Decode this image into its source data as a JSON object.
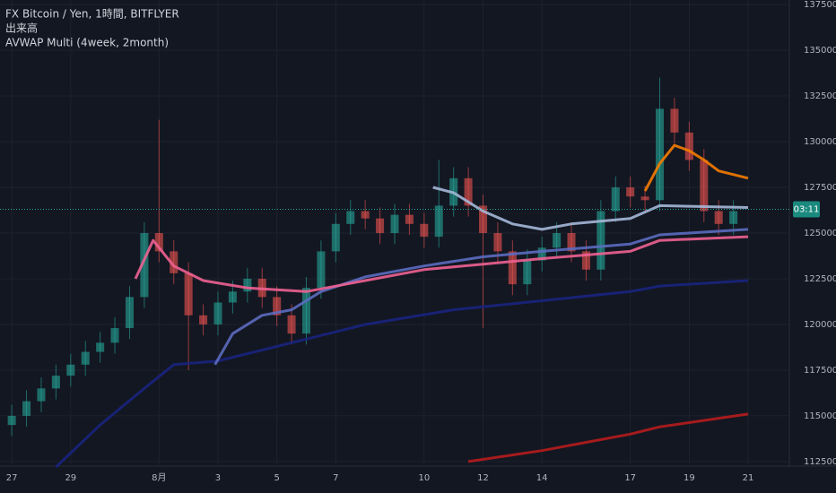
{
  "chart_data": {
    "type": "candlestick",
    "legend_lines": [
      "FX Bitcoin / Yen, 1時間, BITFLYER",
      "出来高",
      "AVWAP Multi (4week, 2month)"
    ],
    "xlim": [
      -0.4,
      26.4
    ],
    "xticks": [
      {
        "value": 0,
        "label": "27"
      },
      {
        "value": 2,
        "label": "29"
      },
      {
        "value": 5,
        "label": "8月"
      },
      {
        "value": 7,
        "label": "3"
      },
      {
        "value": 9,
        "label": "5"
      },
      {
        "value": 11,
        "label": "7"
      },
      {
        "value": 14,
        "label": "10"
      },
      {
        "value": 16,
        "label": "12"
      },
      {
        "value": 18,
        "label": "14"
      },
      {
        "value": 21,
        "label": "17"
      },
      {
        "value": 23,
        "label": "19"
      },
      {
        "value": 25,
        "label": "21"
      }
    ],
    "ylim": [
      1122500,
      1377500
    ],
    "yticks": [
      1125000,
      1150000,
      1175000,
      1200000,
      1225000,
      1250000,
      1275000,
      1300000,
      1325000,
      1350000,
      1375000
    ],
    "grid": true,
    "up_color": "#26a69a",
    "down_color": "#ef5350",
    "candles": {
      "x": [
        0,
        0.5,
        1,
        1.5,
        2,
        2.5,
        3,
        3.5,
        4,
        4.5,
        5,
        5.5,
        6,
        6.5,
        7,
        7.5,
        8,
        8.5,
        9,
        9.5,
        10,
        10.5,
        11,
        11.5,
        12,
        12.5,
        13,
        13.5,
        14,
        14.5,
        15,
        15.5,
        16,
        16.5,
        17,
        17.5,
        18,
        18.5,
        19,
        19.5,
        20,
        20.5,
        21,
        21.5,
        22,
        22.5,
        23,
        23.5,
        24,
        24.5
      ],
      "open": [
        1145000,
        1150000,
        1158000,
        1165000,
        1172000,
        1178000,
        1185000,
        1190000,
        1198000,
        1215000,
        1250000,
        1240000,
        1228000,
        1205000,
        1200000,
        1212000,
        1218000,
        1225000,
        1215000,
        1205000,
        1195000,
        1220000,
        1240000,
        1255000,
        1262000,
        1258000,
        1250000,
        1260000,
        1255000,
        1248000,
        1265000,
        1280000,
        1265000,
        1250000,
        1240000,
        1222000,
        1235000,
        1242000,
        1250000,
        1240000,
        1230000,
        1262000,
        1275000,
        1270000,
        1268000,
        1318000,
        1305000,
        1290000,
        1262000,
        1255000
      ],
      "high": [
        1156000,
        1164000,
        1171000,
        1178000,
        1184000,
        1191000,
        1196000,
        1204000,
        1221000,
        1256000,
        1312000,
        1246000,
        1234000,
        1211000,
        1218000,
        1224000,
        1231000,
        1231000,
        1221000,
        1211000,
        1226000,
        1246000,
        1261000,
        1268000,
        1268000,
        1264000,
        1266000,
        1266000,
        1261000,
        1290000,
        1286000,
        1286000,
        1271000,
        1256000,
        1246000,
        1241000,
        1248000,
        1256000,
        1256000,
        1246000,
        1268000,
        1281000,
        1281000,
        1276000,
        1335000,
        1324000,
        1311000,
        1296000,
        1268000,
        1268000
      ],
      "low": [
        1139000,
        1144000,
        1152000,
        1159000,
        1166000,
        1172000,
        1179000,
        1184000,
        1192000,
        1209000,
        1234000,
        1222000,
        1175000,
        1194000,
        1194000,
        1206000,
        1212000,
        1209000,
        1199000,
        1189000,
        1189000,
        1214000,
        1234000,
        1249000,
        1252000,
        1244000,
        1244000,
        1249000,
        1242000,
        1242000,
        1259000,
        1259000,
        1198000,
        1234000,
        1216000,
        1216000,
        1229000,
        1236000,
        1234000,
        1224000,
        1224000,
        1256000,
        1264000,
        1262000,
        1262000,
        1299000,
        1284000,
        1256000,
        1249000,
        1249000
      ],
      "close": [
        1150000,
        1158000,
        1165000,
        1172000,
        1178000,
        1185000,
        1190000,
        1198000,
        1215000,
        1250000,
        1240000,
        1228000,
        1205000,
        1200000,
        1212000,
        1218000,
        1225000,
        1215000,
        1205000,
        1195000,
        1220000,
        1240000,
        1255000,
        1262000,
        1258000,
        1250000,
        1260000,
        1255000,
        1248000,
        1265000,
        1280000,
        1265000,
        1250000,
        1240000,
        1222000,
        1235000,
        1242000,
        1250000,
        1240000,
        1230000,
        1262000,
        1275000,
        1270000,
        1268000,
        1318000,
        1305000,
        1290000,
        1262000,
        1255000,
        1262000
      ]
    },
    "series": [
      {
        "color": "#1a237e",
        "x": [
          1.5,
          3,
          4.5,
          5.5,
          7,
          9,
          12,
          15,
          18,
          21,
          22,
          25
        ],
        "values": [
          1122000,
          1145000,
          1165000,
          1178000,
          1180000,
          1188000,
          1200000,
          1208000,
          1213000,
          1218000,
          1221000,
          1224000
        ]
      },
      {
        "color": "#b71c1c",
        "x": [
          15.5,
          18,
          21,
          22,
          25
        ],
        "values": [
          1125000,
          1131000,
          1140000,
          1144000,
          1151000
        ]
      },
      {
        "color": "#5c6bc0",
        "x": [
          6.9,
          7.5,
          8.5,
          9.5,
          10.5,
          12,
          14,
          16,
          18,
          21,
          22,
          25
        ],
        "values": [
          1178000,
          1195000,
          1205000,
          1208000,
          1218000,
          1226000,
          1232000,
          1237000,
          1240000,
          1244000,
          1249000,
          1252000
        ]
      },
      {
        "color": "#f06292",
        "x": [
          4.2,
          4.8,
          5.5,
          6.5,
          8,
          10,
          12,
          14,
          16,
          18,
          21,
          22,
          25
        ],
        "values": [
          1225000,
          1246000,
          1232000,
          1224000,
          1220000,
          1218000,
          1224000,
          1230000,
          1233000,
          1236000,
          1240000,
          1246000,
          1248000
        ]
      },
      {
        "color": "#a5b8d8",
        "x": [
          14.3,
          15,
          16,
          17,
          18,
          19,
          21,
          22,
          25
        ],
        "values": [
          1275000,
          1272000,
          1262000,
          1255000,
          1252000,
          1255000,
          1258000,
          1265000,
          1264000
        ]
      },
      {
        "color": "#f57c00",
        "x": [
          21.5,
          22,
          22.5,
          23,
          23.5,
          24,
          25
        ],
        "values": [
          1273000,
          1288000,
          1298000,
          1295000,
          1290000,
          1284000,
          1280000
        ]
      }
    ],
    "last_price": 1263000,
    "countdown": "03:11"
  }
}
